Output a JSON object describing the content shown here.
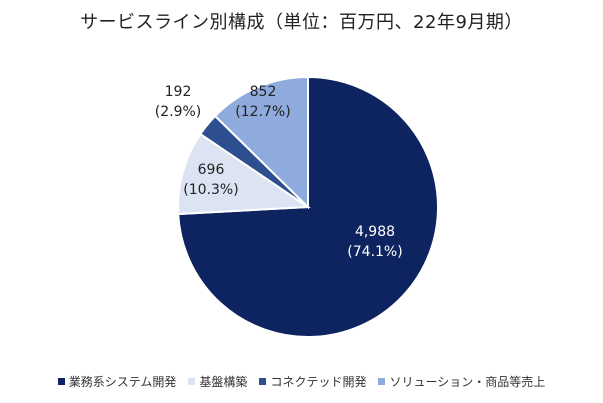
{
  "chart_data": {
    "type": "pie",
    "title": "サービスライン別構成（単位：百万円、22年9月期）",
    "categories": [
      "業務系システム開発",
      "基盤構築",
      "コネクテッド開発",
      "ソリューション・商品等売上"
    ],
    "values": [
      4988,
      696,
      192,
      852
    ],
    "value_labels": [
      "4,988",
      "696",
      "192",
      "852"
    ],
    "percent_labels": [
      "(74.1%)",
      "(10.3%)",
      "(2.9%)",
      "(12.7%)"
    ],
    "colors": [
      "#0d2461",
      "#dce3f3",
      "#2e4f8f",
      "#8faadc"
    ],
    "label_colors": [
      "#ffffff",
      "#222222",
      "#222222",
      "#222222"
    ],
    "legend_position": "bottom"
  }
}
